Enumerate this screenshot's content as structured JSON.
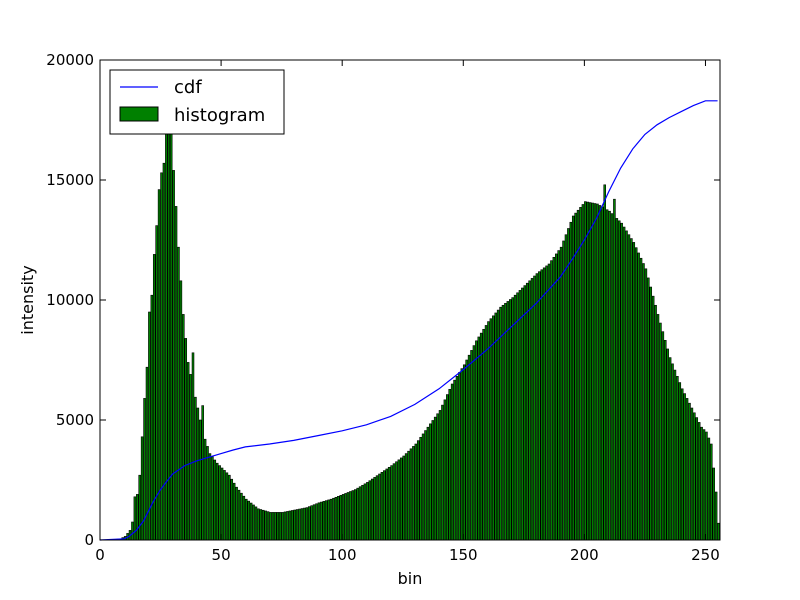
{
  "chart_data": {
    "type": "bar",
    "xlabel": "bin",
    "ylabel": "intensity",
    "xlim": [
      0,
      256
    ],
    "ylim": [
      0,
      20000
    ],
    "x_ticks": [
      0,
      50,
      100,
      150,
      200,
      250
    ],
    "y_ticks": [
      0,
      5000,
      10000,
      15000,
      20000
    ],
    "legend": {
      "placement": "top-left",
      "entries": [
        "cdf",
        "histogram"
      ]
    },
    "grid": false,
    "colors": {
      "histogram": "#008000",
      "cdf": "#0000ff",
      "bar_edge": "#000000"
    },
    "histogram_anchors": [
      [
        0,
        0
      ],
      [
        5,
        0
      ],
      [
        8,
        50
      ],
      [
        10,
        150
      ],
      [
        12,
        400
      ],
      [
        14,
        1100
      ],
      [
        16,
        2700
      ],
      [
        18,
        5900
      ],
      [
        20,
        8500
      ],
      [
        22,
        11900
      ],
      [
        23,
        13100
      ],
      [
        24,
        14600
      ],
      [
        25,
        15300
      ],
      [
        26,
        15700
      ],
      [
        27,
        17300
      ],
      [
        28,
        17600
      ],
      [
        29,
        17200
      ],
      [
        30,
        15400
      ],
      [
        31,
        13900
      ],
      [
        32,
        12200
      ],
      [
        34,
        9400
      ],
      [
        36,
        7400
      ],
      [
        38,
        6400
      ],
      [
        40,
        5500
      ],
      [
        42,
        4500
      ],
      [
        45,
        3600
      ],
      [
        48,
        3200
      ],
      [
        50,
        3000
      ],
      [
        53,
        2700
      ],
      [
        56,
        2200
      ],
      [
        60,
        1700
      ],
      [
        65,
        1300
      ],
      [
        70,
        1150
      ],
      [
        75,
        1150
      ],
      [
        80,
        1250
      ],
      [
        85,
        1350
      ],
      [
        90,
        1550
      ],
      [
        95,
        1700
      ],
      [
        100,
        1900
      ],
      [
        105,
        2100
      ],
      [
        110,
        2400
      ],
      [
        115,
        2750
      ],
      [
        120,
        3100
      ],
      [
        125,
        3500
      ],
      [
        130,
        4000
      ],
      [
        135,
        4700
      ],
      [
        140,
        5400
      ],
      [
        145,
        6500
      ],
      [
        150,
        7300
      ],
      [
        155,
        8300
      ],
      [
        160,
        9100
      ],
      [
        165,
        9700
      ],
      [
        170,
        10100
      ],
      [
        175,
        10600
      ],
      [
        180,
        11100
      ],
      [
        185,
        11500
      ],
      [
        190,
        12200
      ],
      [
        195,
        13500
      ],
      [
        200,
        14100
      ],
      [
        205,
        14000
      ],
      [
        210,
        13700
      ],
      [
        215,
        13200
      ],
      [
        220,
        12400
      ],
      [
        225,
        11300
      ],
      [
        230,
        9400
      ],
      [
        235,
        7600
      ],
      [
        240,
        6300
      ],
      [
        245,
        5300
      ],
      [
        248,
        4700
      ],
      [
        250,
        4500
      ],
      [
        252,
        4000
      ],
      [
        254,
        2000
      ],
      [
        255,
        700
      ]
    ],
    "histogram_spikes": {
      "14": 1800,
      "20": 9500,
      "38": 7800,
      "42": 5600,
      "208": 14800,
      "212": 14200
    },
    "cdf_points": [
      [
        0,
        0
      ],
      [
        10,
        50
      ],
      [
        12,
        150
      ],
      [
        15,
        400
      ],
      [
        18,
        800
      ],
      [
        20,
        1200
      ],
      [
        22,
        1600
      ],
      [
        25,
        2100
      ],
      [
        28,
        2500
      ],
      [
        30,
        2750
      ],
      [
        35,
        3100
      ],
      [
        40,
        3300
      ],
      [
        45,
        3450
      ],
      [
        50,
        3600
      ],
      [
        55,
        3750
      ],
      [
        60,
        3880
      ],
      [
        70,
        4000
      ],
      [
        80,
        4150
      ],
      [
        90,
        4350
      ],
      [
        100,
        4550
      ],
      [
        110,
        4800
      ],
      [
        120,
        5150
      ],
      [
        130,
        5650
      ],
      [
        140,
        6300
      ],
      [
        150,
        7100
      ],
      [
        160,
        7950
      ],
      [
        170,
        8900
      ],
      [
        180,
        9850
      ],
      [
        190,
        10950
      ],
      [
        195,
        11700
      ],
      [
        200,
        12500
      ],
      [
        205,
        13400
      ],
      [
        210,
        14500
      ],
      [
        215,
        15500
      ],
      [
        220,
        16300
      ],
      [
        225,
        16900
      ],
      [
        230,
        17300
      ],
      [
        235,
        17600
      ],
      [
        240,
        17850
      ],
      [
        245,
        18100
      ],
      [
        250,
        18300
      ],
      [
        252,
        18300
      ],
      [
        255,
        18300
      ]
    ]
  }
}
